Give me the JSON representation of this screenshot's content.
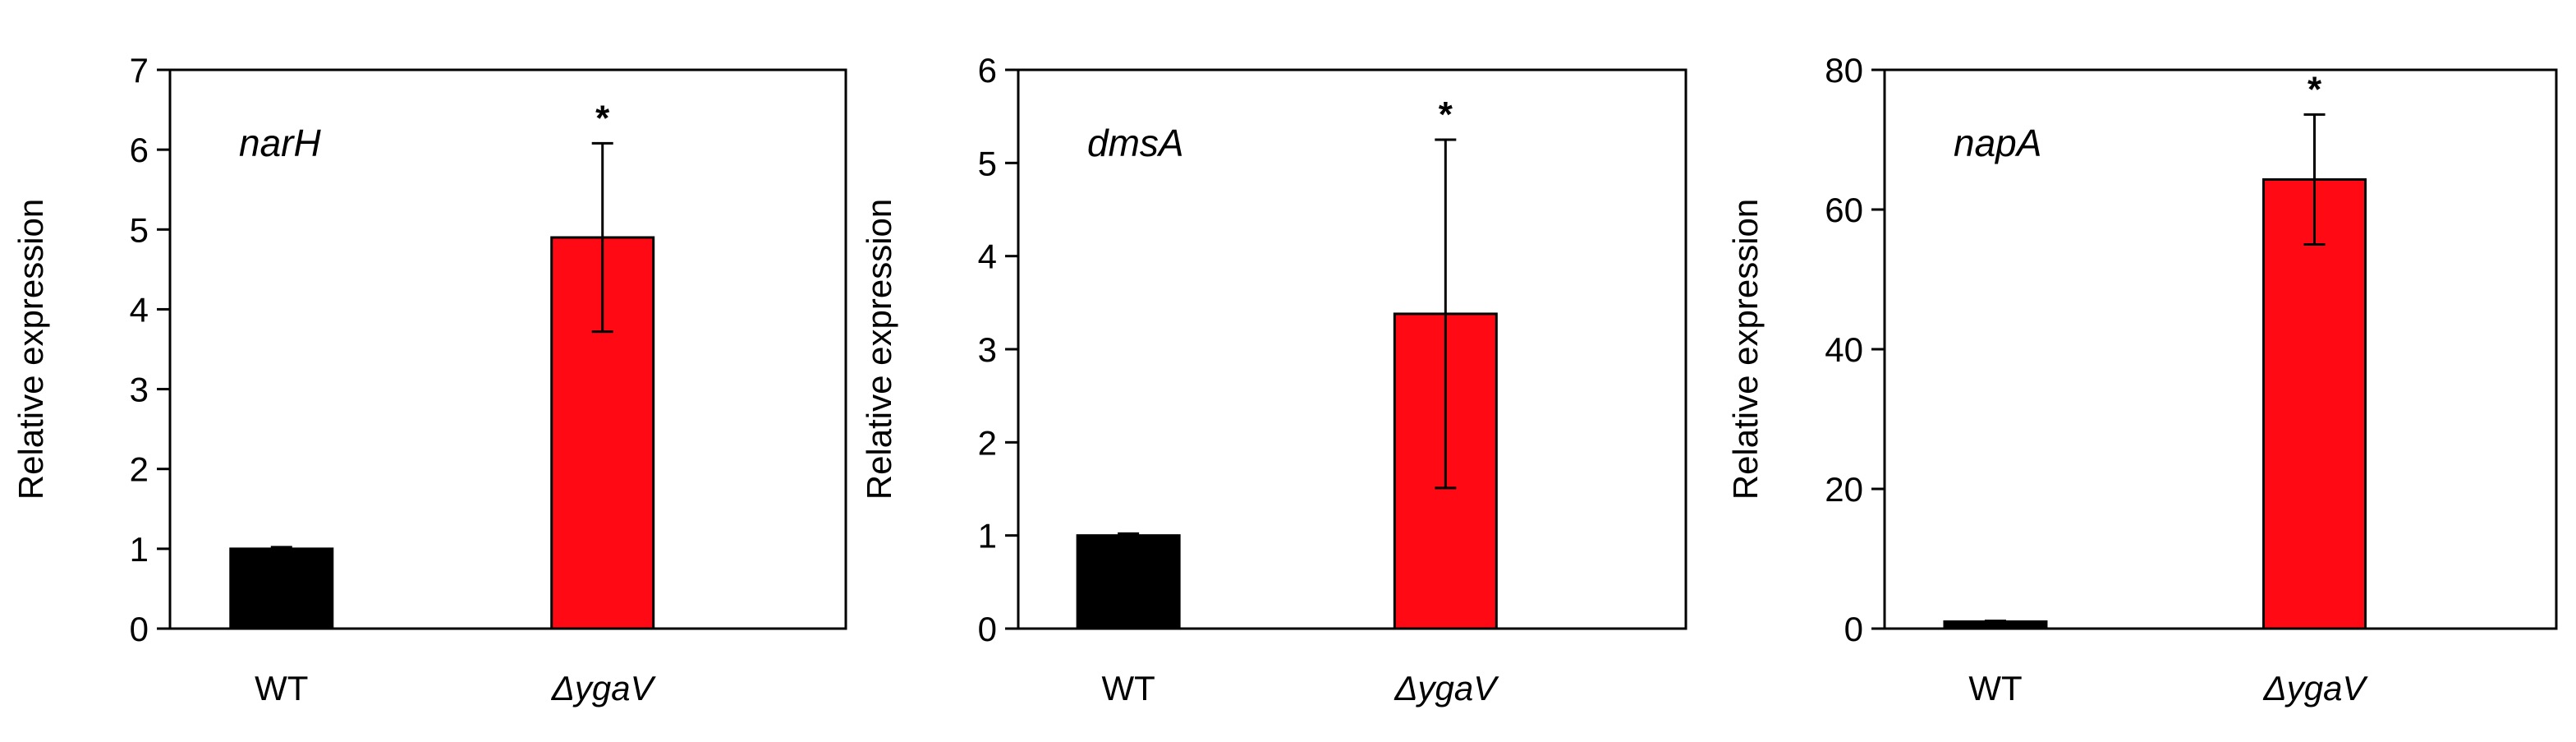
{
  "chart_data": [
    {
      "type": "bar",
      "panel_label": "narH",
      "title": "",
      "xlabel": "",
      "ylabel": "Relative expression",
      "categories": [
        "WT",
        "ΔygaV"
      ],
      "values": [
        1.0,
        4.9
      ],
      "error": [
        0.02,
        1.18
      ],
      "significance": [
        "",
        "*"
      ],
      "ylim": [
        0,
        7
      ],
      "yticks": [
        0,
        1,
        2,
        3,
        4,
        5,
        6,
        7
      ],
      "ytick_labels": [
        "0",
        "1",
        "2",
        "3",
        "4",
        "5",
        "6",
        "7"
      ],
      "grid": false
    },
    {
      "type": "bar",
      "panel_label": "dmsA",
      "title": "",
      "xlabel": "",
      "ylabel": "Relative expression",
      "categories": [
        "WT",
        "ΔygaV"
      ],
      "values": [
        1.0,
        3.38
      ],
      "error": [
        0.02,
        1.87
      ],
      "significance": [
        "",
        "*"
      ],
      "ylim": [
        0,
        6
      ],
      "yticks": [
        0,
        1,
        2,
        3,
        4,
        5,
        6
      ],
      "ytick_labels": [
        "0",
        "1",
        "2",
        "3",
        "4",
        "5",
        "6"
      ],
      "grid": false
    },
    {
      "type": "bar",
      "panel_label": "napA",
      "title": "",
      "xlabel": "",
      "ylabel": "Relative expression",
      "categories": [
        "WT",
        "ΔygaV"
      ],
      "values": [
        1.0,
        64.3
      ],
      "error": [
        0.1,
        9.3
      ],
      "significance": [
        "",
        "*"
      ],
      "ylim": [
        0,
        80
      ],
      "yticks": [
        0,
        20,
        40,
        60,
        80
      ],
      "ytick_labels": [
        "0",
        "20",
        "40",
        "60",
        "80"
      ],
      "grid": false
    }
  ],
  "colors": {
    "wt_bar": "#000000",
    "mutant_bar": "#ff0a14",
    "axis": "#000000",
    "background": "#ffffff"
  }
}
